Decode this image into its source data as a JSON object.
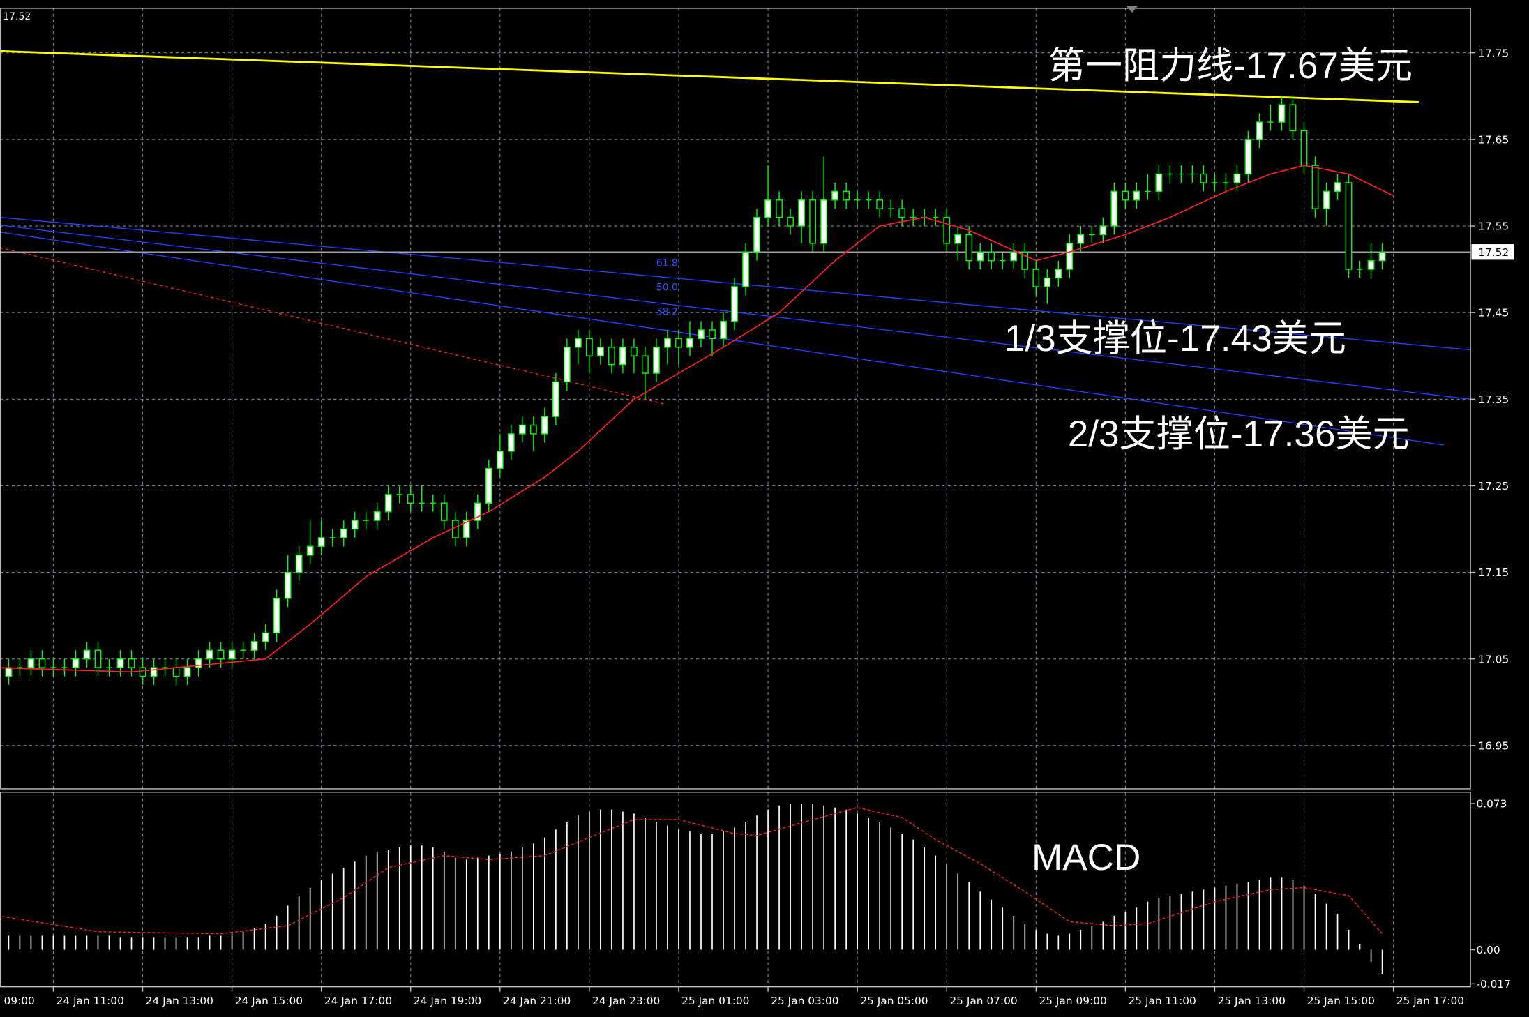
{
  "chart_data": [
    {
      "type": "candlestick",
      "last_price": 17.52,
      "annotations": [
        "第一阻力线-17.67美元",
        "1/3支撑位-17.43美元",
        "2/3支撑位-17.36美元"
      ],
      "fib_labels": [
        "61.8",
        "50.0",
        "38.2"
      ],
      "xlim": [
        3.23,
        134.9
      ],
      "ylim": [
        16.9,
        17.802
      ],
      "yticks": [
        16.95,
        17.05,
        17.15,
        17.25,
        17.35,
        17.45,
        17.55,
        17.65,
        17.75
      ],
      "xticks": [
        {
          "value": 0,
          "label": "24 Jan 09:00"
        },
        {
          "value": 8,
          "label": "24 Jan 11:00"
        },
        {
          "value": 16,
          "label": "24 Jan 13:00"
        },
        {
          "value": 24,
          "label": "24 Jan 15:00"
        },
        {
          "value": 32,
          "label": "24 Jan 17:00"
        },
        {
          "value": 40,
          "label": "24 Jan 19:00"
        },
        {
          "value": 48,
          "label": "24 Jan 21:00"
        },
        {
          "value": 56,
          "label": "24 Jan 23:00"
        },
        {
          "value": 64,
          "label": "25 Jan 01:00"
        },
        {
          "value": 72,
          "label": "25 Jan 03:00"
        },
        {
          "value": 80,
          "label": "25 Jan 05:00"
        },
        {
          "value": 88,
          "label": "25 Jan 07:00"
        },
        {
          "value": 96,
          "label": "25 Jan 09:00"
        },
        {
          "value": 104,
          "label": "25 Jan 11:00"
        },
        {
          "value": 112,
          "label": "25 Jan 13:00"
        },
        {
          "value": 120,
          "label": "25 Jan 15:00"
        },
        {
          "value": 128,
          "label": "25 Jan 17:00"
        }
      ],
      "grid": true,
      "up_color": "#ffffff",
      "down_color": "#000000",
      "wick_color": "#00ff00",
      "x": [
        3,
        4,
        5,
        6,
        7,
        8,
        9,
        10,
        11,
        12,
        13,
        14,
        15,
        16,
        17,
        18,
        19,
        20,
        21,
        22,
        23,
        24,
        25,
        26,
        27,
        28,
        29,
        30,
        31,
        32,
        33,
        34,
        35,
        36,
        37,
        38,
        39,
        40,
        41,
        42,
        43,
        44,
        45,
        46,
        47,
        48,
        49,
        50,
        51,
        52,
        53,
        54,
        55,
        56,
        57,
        58,
        59,
        60,
        61,
        62,
        63,
        64,
        65,
        66,
        67,
        68,
        69,
        70,
        71,
        72,
        73,
        74,
        75,
        76,
        77,
        78,
        79,
        80,
        81,
        82,
        83,
        84,
        85,
        86,
        87,
        88,
        89,
        90,
        91,
        92,
        93,
        94,
        95,
        96,
        97,
        98,
        99,
        100,
        101,
        102,
        103,
        104,
        105,
        106,
        107,
        108,
        109,
        110,
        111,
        112,
        113,
        114,
        115,
        116,
        117,
        118,
        119,
        120,
        121,
        122,
        123,
        124,
        125,
        126,
        127
      ],
      "open": [
        17.04,
        17.03,
        17.04,
        17.04,
        17.05,
        17.04,
        17.04,
        17.04,
        17.05,
        17.06,
        17.04,
        17.04,
        17.05,
        17.04,
        17.03,
        17.04,
        17.04,
        17.03,
        17.04,
        17.05,
        17.06,
        17.05,
        17.06,
        17.06,
        17.07,
        17.08,
        17.12,
        17.15,
        17.17,
        17.18,
        17.19,
        17.19,
        17.2,
        17.21,
        17.21,
        17.22,
        17.24,
        17.24,
        17.23,
        17.23,
        17.23,
        17.21,
        17.19,
        17.21,
        17.23,
        17.27,
        17.29,
        17.31,
        17.32,
        17.31,
        17.33,
        17.37,
        17.41,
        17.42,
        17.4,
        17.41,
        17.39,
        17.41,
        17.4,
        17.38,
        17.41,
        17.42,
        17.41,
        17.42,
        17.43,
        17.42,
        17.44,
        17.48,
        17.52,
        17.56,
        17.58,
        17.56,
        17.55,
        17.58,
        17.53,
        17.58,
        17.59,
        17.58,
        17.58,
        17.58,
        17.57,
        17.57,
        17.56,
        17.56,
        17.56,
        17.56,
        17.53,
        17.54,
        17.51,
        17.52,
        17.51,
        17.51,
        17.52,
        17.5,
        17.48,
        17.49,
        17.5,
        17.53,
        17.54,
        17.54,
        17.55,
        17.59,
        17.58,
        17.59,
        17.59,
        17.61,
        17.61,
        17.61,
        17.61,
        17.6,
        17.6,
        17.6,
        17.61,
        17.65,
        17.67,
        17.67,
        17.69,
        17.66,
        17.62,
        17.57,
        17.59,
        17.6,
        17.5,
        17.5,
        17.51
      ],
      "high": [
        17.05,
        17.05,
        17.05,
        17.06,
        17.06,
        17.05,
        17.05,
        17.06,
        17.07,
        17.07,
        17.05,
        17.06,
        17.06,
        17.05,
        17.05,
        17.05,
        17.05,
        17.05,
        17.06,
        17.07,
        17.07,
        17.07,
        17.07,
        17.08,
        17.09,
        17.13,
        17.17,
        17.18,
        17.21,
        17.21,
        17.2,
        17.21,
        17.22,
        17.22,
        17.23,
        17.25,
        17.25,
        17.25,
        17.25,
        17.24,
        17.24,
        17.22,
        17.22,
        17.24,
        17.28,
        17.31,
        17.32,
        17.33,
        17.33,
        17.34,
        17.38,
        17.42,
        17.43,
        17.43,
        17.42,
        17.42,
        17.42,
        17.42,
        17.41,
        17.42,
        17.43,
        17.43,
        17.44,
        17.44,
        17.44,
        17.45,
        17.49,
        17.53,
        17.57,
        17.62,
        17.59,
        17.57,
        17.59,
        17.59,
        17.63,
        17.6,
        17.6,
        17.59,
        17.59,
        17.59,
        17.58,
        17.58,
        17.57,
        17.57,
        17.57,
        17.57,
        17.55,
        17.55,
        17.53,
        17.53,
        17.52,
        17.53,
        17.53,
        17.51,
        17.5,
        17.51,
        17.54,
        17.55,
        17.55,
        17.56,
        17.6,
        17.6,
        17.6,
        17.61,
        17.62,
        17.62,
        17.62,
        17.62,
        17.62,
        17.61,
        17.61,
        17.62,
        17.66,
        17.68,
        17.69,
        17.7,
        17.7,
        17.67,
        17.63,
        17.6,
        17.61,
        17.61,
        17.51,
        17.53,
        17.53
      ],
      "low": [
        17.02,
        17.02,
        17.03,
        17.03,
        17.03,
        17.03,
        17.03,
        17.03,
        17.04,
        17.03,
        17.03,
        17.03,
        17.03,
        17.02,
        17.02,
        17.03,
        17.02,
        17.02,
        17.03,
        17.04,
        17.04,
        17.04,
        17.05,
        17.05,
        17.06,
        17.07,
        17.11,
        17.14,
        17.16,
        17.17,
        17.18,
        17.18,
        17.19,
        17.2,
        17.2,
        17.21,
        17.23,
        17.22,
        17.22,
        17.22,
        17.2,
        17.18,
        17.18,
        17.2,
        17.22,
        17.26,
        17.28,
        17.3,
        17.29,
        17.3,
        17.32,
        17.36,
        17.39,
        17.38,
        17.39,
        17.38,
        17.38,
        17.38,
        17.35,
        17.37,
        17.39,
        17.39,
        17.4,
        17.41,
        17.4,
        17.41,
        17.43,
        17.47,
        17.51,
        17.55,
        17.55,
        17.54,
        17.53,
        17.52,
        17.52,
        17.57,
        17.57,
        17.57,
        17.57,
        17.56,
        17.56,
        17.55,
        17.55,
        17.55,
        17.55,
        17.52,
        17.51,
        17.5,
        17.5,
        17.5,
        17.5,
        17.5,
        17.49,
        17.47,
        17.46,
        17.48,
        17.49,
        17.52,
        17.53,
        17.53,
        17.54,
        17.57,
        17.57,
        17.58,
        17.58,
        17.6,
        17.6,
        17.6,
        17.59,
        17.59,
        17.59,
        17.59,
        17.6,
        17.64,
        17.66,
        17.66,
        17.65,
        17.61,
        17.56,
        17.55,
        17.58,
        17.49,
        17.49,
        17.49,
        17.5
      ],
      "close": [
        17.03,
        17.04,
        17.04,
        17.05,
        17.04,
        17.04,
        17.04,
        17.05,
        17.06,
        17.04,
        17.04,
        17.05,
        17.04,
        17.03,
        17.04,
        17.04,
        17.03,
        17.04,
        17.05,
        17.06,
        17.05,
        17.06,
        17.06,
        17.07,
        17.08,
        17.12,
        17.15,
        17.17,
        17.18,
        17.19,
        17.19,
        17.2,
        17.21,
        17.21,
        17.22,
        17.24,
        17.24,
        17.23,
        17.23,
        17.23,
        17.21,
        17.19,
        17.21,
        17.23,
        17.27,
        17.29,
        17.31,
        17.32,
        17.31,
        17.33,
        17.37,
        17.41,
        17.42,
        17.4,
        17.41,
        17.39,
        17.41,
        17.4,
        17.38,
        17.41,
        17.42,
        17.41,
        17.42,
        17.43,
        17.42,
        17.44,
        17.48,
        17.52,
        17.56,
        17.58,
        17.56,
        17.55,
        17.58,
        17.53,
        17.58,
        17.59,
        17.58,
        17.58,
        17.58,
        17.57,
        17.57,
        17.56,
        17.56,
        17.56,
        17.56,
        17.53,
        17.54,
        17.51,
        17.52,
        17.51,
        17.51,
        17.52,
        17.5,
        17.48,
        17.49,
        17.5,
        17.53,
        17.54,
        17.54,
        17.55,
        17.59,
        17.58,
        17.59,
        17.59,
        17.61,
        17.61,
        17.61,
        17.61,
        17.6,
        17.6,
        17.6,
        17.61,
        17.65,
        17.67,
        17.67,
        17.69,
        17.66,
        17.62,
        17.57,
        17.59,
        17.6,
        17.5,
        17.5,
        17.51,
        17.52
      ],
      "ma": {
        "color": "#ff2020",
        "x": [
          3,
          15,
          27,
          31,
          36,
          42,
          47,
          52,
          55,
          60,
          68,
          73,
          78,
          82,
          86,
          90,
          96,
          99,
          104,
          108,
          113,
          117,
          120,
          124,
          128
        ],
        "values": [
          17.04,
          17.035,
          17.05,
          17.09,
          17.145,
          17.19,
          17.22,
          17.26,
          17.29,
          17.35,
          17.41,
          17.45,
          17.51,
          17.55,
          17.56,
          17.545,
          17.51,
          17.52,
          17.54,
          17.56,
          17.59,
          17.61,
          17.62,
          17.61,
          17.585
        ]
      },
      "lines": [
        {
          "color": "#ffff00",
          "style": "solid",
          "x": [
            3.23,
            130.3
          ],
          "values": [
            17.752,
            17.693
          ]
        },
        {
          "color": "#2040ff",
          "style": "solid",
          "x": [
            3.23,
            134.9
          ],
          "values": [
            17.56,
            17.407
          ]
        },
        {
          "color": "#2040ff",
          "style": "solid",
          "x": [
            3.23,
            134.9
          ],
          "values": [
            17.551,
            17.35
          ]
        },
        {
          "color": "#2040ff",
          "style": "solid",
          "x": [
            3.23,
            132.5
          ],
          "values": [
            17.543,
            17.297
          ]
        },
        {
          "color": "#ff2020",
          "style": "dashed",
          "x": [
            3.23,
            62.9
          ],
          "values": [
            17.525,
            17.344
          ]
        }
      ]
    },
    {
      "type": "macd",
      "title": "MACD",
      "ylim": [
        -0.0185,
        0.0784
      ],
      "yticks": [
        -0.017,
        {
          "value": 0,
          "label": "0.00"
        },
        0.073
      ],
      "bar_color": "#ffffff",
      "values": [
        0.007,
        0.007,
        0.007,
        0.007,
        0.007,
        0.007,
        0.007,
        0.007,
        0.007,
        0.007,
        0.007,
        0.006,
        0.006,
        0.006,
        0.006,
        0.006,
        0.006,
        0.006,
        0.006,
        0.007,
        0.007,
        0.008,
        0.009,
        0.011,
        0.013,
        0.017,
        0.022,
        0.027,
        0.031,
        0.035,
        0.038,
        0.041,
        0.044,
        0.047,
        0.049,
        0.05,
        0.051,
        0.052,
        0.052,
        0.051,
        0.049,
        0.046,
        0.045,
        0.046,
        0.047,
        0.048,
        0.049,
        0.051,
        0.053,
        0.056,
        0.06,
        0.064,
        0.067,
        0.069,
        0.07,
        0.07,
        0.069,
        0.068,
        0.066,
        0.064,
        0.062,
        0.06,
        0.059,
        0.058,
        0.058,
        0.059,
        0.061,
        0.064,
        0.067,
        0.07,
        0.072,
        0.073,
        0.073,
        0.073,
        0.072,
        0.071,
        0.07,
        0.068,
        0.066,
        0.064,
        0.061,
        0.058,
        0.055,
        0.051,
        0.047,
        0.043,
        0.038,
        0.034,
        0.029,
        0.025,
        0.021,
        0.017,
        0.013,
        0.01,
        0.008,
        0.007,
        0.008,
        0.01,
        0.012,
        0.014,
        0.017,
        0.019,
        0.021,
        0.024,
        0.026,
        0.027,
        0.028,
        0.029,
        0.03,
        0.031,
        0.032,
        0.033,
        0.034,
        0.035,
        0.036,
        0.036,
        0.035,
        0.032,
        0.028,
        0.023,
        0.018,
        0.01,
        0.003,
        -0.006,
        -0.012
      ],
      "signal": {
        "color": "#ff2020",
        "x": [
          3,
          12,
          23,
          29,
          34,
          38,
          43,
          47,
          52,
          56,
          60,
          64,
          69,
          71,
          76,
          80,
          84,
          87,
          91,
          95,
          99,
          103,
          106,
          112,
          117,
          120,
          124,
          127
        ],
        "values": [
          0.017,
          0.009,
          0.008,
          0.012,
          0.026,
          0.041,
          0.047,
          0.045,
          0.047,
          0.056,
          0.065,
          0.065,
          0.058,
          0.057,
          0.065,
          0.071,
          0.066,
          0.055,
          0.043,
          0.029,
          0.014,
          0.012,
          0.013,
          0.024,
          0.03,
          0.031,
          0.027,
          0.008
        ]
      }
    }
  ]
}
